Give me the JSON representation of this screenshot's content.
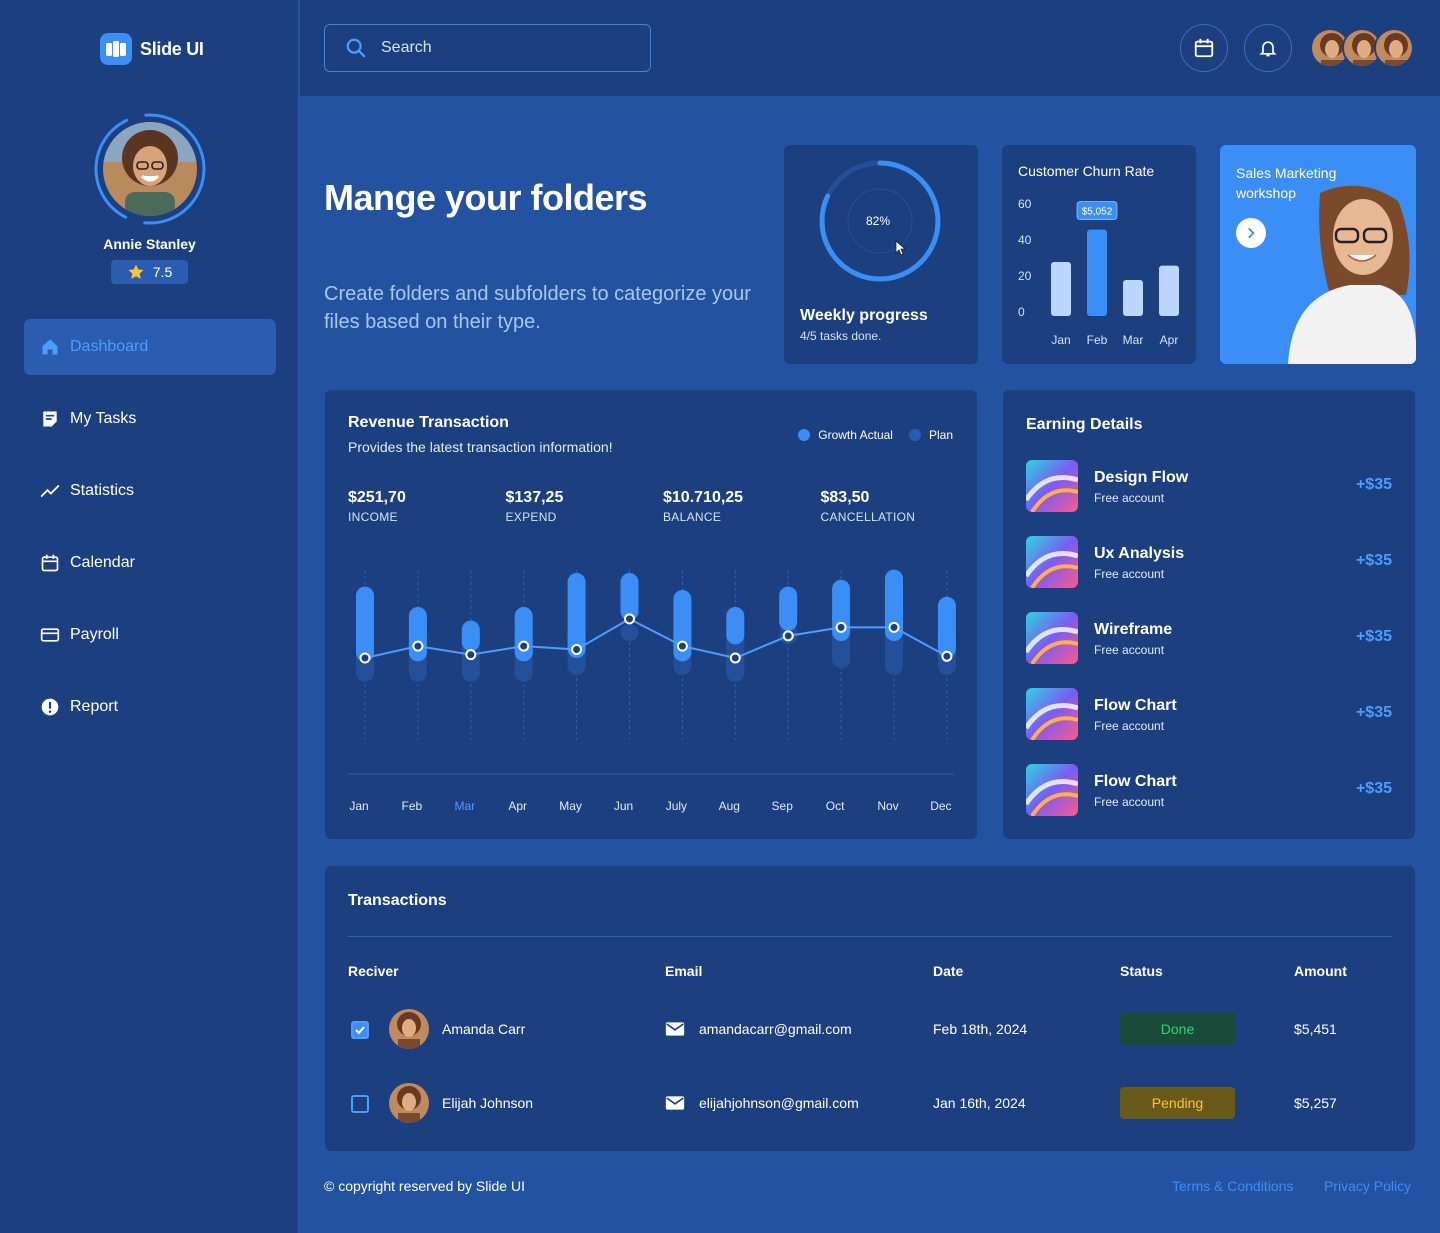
{
  "brand": {
    "name": "Slide UI"
  },
  "profile": {
    "name": "Annie Stanley",
    "rating": "7.5"
  },
  "nav": [
    {
      "label": "Dashboard",
      "icon": "home-icon",
      "active": true
    },
    {
      "label": "My Tasks",
      "icon": "tasks-icon"
    },
    {
      "label": "Statistics",
      "icon": "statistics-icon"
    },
    {
      "label": "Calendar",
      "icon": "calendar-icon"
    },
    {
      "label": "Payroll",
      "icon": "card-icon"
    },
    {
      "label": "Report",
      "icon": "alert-icon"
    }
  ],
  "search": {
    "placeholder": "Search"
  },
  "hero": {
    "title": "Mange your folders",
    "subtitle": "Create folders and subfolders to categorize your files based on their type."
  },
  "weekly": {
    "percent_label": "82%",
    "percent": 82,
    "title": "Weekly progress",
    "subtitle": "4/5 tasks done."
  },
  "churn": {
    "title": "Customer Churn Rate",
    "tooltip": "$5,052",
    "yticks": [
      "60",
      "40",
      "20",
      "0"
    ],
    "months": [
      "Jan",
      "Feb",
      "Mar",
      "Apr"
    ],
    "values": [
      30,
      48,
      20,
      28
    ]
  },
  "sales": {
    "title": "Sales Marketing workshop"
  },
  "revenue": {
    "title": "Revenue Transaction",
    "subtitle": "Provides the latest transaction information!",
    "legend": {
      "actual": "Growth Actual",
      "plan": "Plan"
    },
    "stats": [
      {
        "value": "$251,70",
        "label": "INCOME"
      },
      {
        "value": "$137,25",
        "label": "EXPEND"
      },
      {
        "value": "$10.710,25",
        "label": "BALANCE"
      },
      {
        "value": "$83,50",
        "label": "CANCELLATION"
      }
    ],
    "highlight_month": "Mar"
  },
  "chart_data": {
    "type": "bar",
    "categories": [
      "Jan",
      "Feb",
      "Mar",
      "Apr",
      "May",
      "Jun",
      "July",
      "Aug",
      "Sep",
      "Oct",
      "Nov",
      "Dec"
    ],
    "series": [
      {
        "name": "Growth Actual",
        "low": [
          38,
          38,
          44,
          38,
          40,
          62,
          38,
          48,
          56,
          50,
          50,
          40
        ],
        "high": [
          82,
          70,
          62,
          70,
          90,
          90,
          80,
          70,
          82,
          86,
          92,
          76
        ]
      },
      {
        "name": "Plan",
        "low": [
          26,
          26,
          26,
          26,
          30,
          50,
          30,
          26,
          48,
          34,
          30,
          30
        ],
        "high": [
          60,
          60,
          58,
          60,
          60,
          60,
          60,
          58,
          60,
          60,
          58,
          60
        ]
      },
      {
        "name": "line",
        "values": [
          40,
          47,
          42,
          47,
          45,
          63,
          47,
          40,
          53,
          58,
          58,
          41
        ]
      }
    ],
    "ylim": [
      0,
      100
    ]
  },
  "earning": {
    "title": "Earning Details",
    "items": [
      {
        "name": "Design Flow",
        "sub": "Free account",
        "amount": "+$35"
      },
      {
        "name": "Ux Analysis",
        "sub": "Free account",
        "amount": "+$35"
      },
      {
        "name": "Wireframe",
        "sub": "Free account",
        "amount": "+$35"
      },
      {
        "name": "Flow Chart",
        "sub": "Free account",
        "amount": "+$35"
      },
      {
        "name": "Flow Chart",
        "sub": "Free account",
        "amount": "+$35"
      }
    ]
  },
  "transactions": {
    "title": "Transactions",
    "headers": {
      "receiver": "Reciver",
      "email": "Email",
      "date": "Date",
      "status": "Status",
      "amount": "Amount"
    },
    "rows": [
      {
        "name": "Amanda Carr",
        "email": "amandacarr@gmail.com",
        "date": "Feb 18th, 2024",
        "status": "Done",
        "amount": "$5,451",
        "checked": true
      },
      {
        "name": "Elijah Johnson",
        "email": "elijahjohnson@gmail.com",
        "date": "Jan 16th, 2024",
        "status": "Pending",
        "amount": "$5,257",
        "checked": false
      }
    ]
  },
  "footer": {
    "copyright": "© copyright reserved by Slide UI",
    "terms": "Terms & Conditions",
    "privacy": "Privacy Policy"
  },
  "colors": {
    "accent": "#3b8ef5",
    "panel": "#1c3f80",
    "background": "#2353a0",
    "done": "#2fd47a",
    "pending": "#ffc233"
  }
}
